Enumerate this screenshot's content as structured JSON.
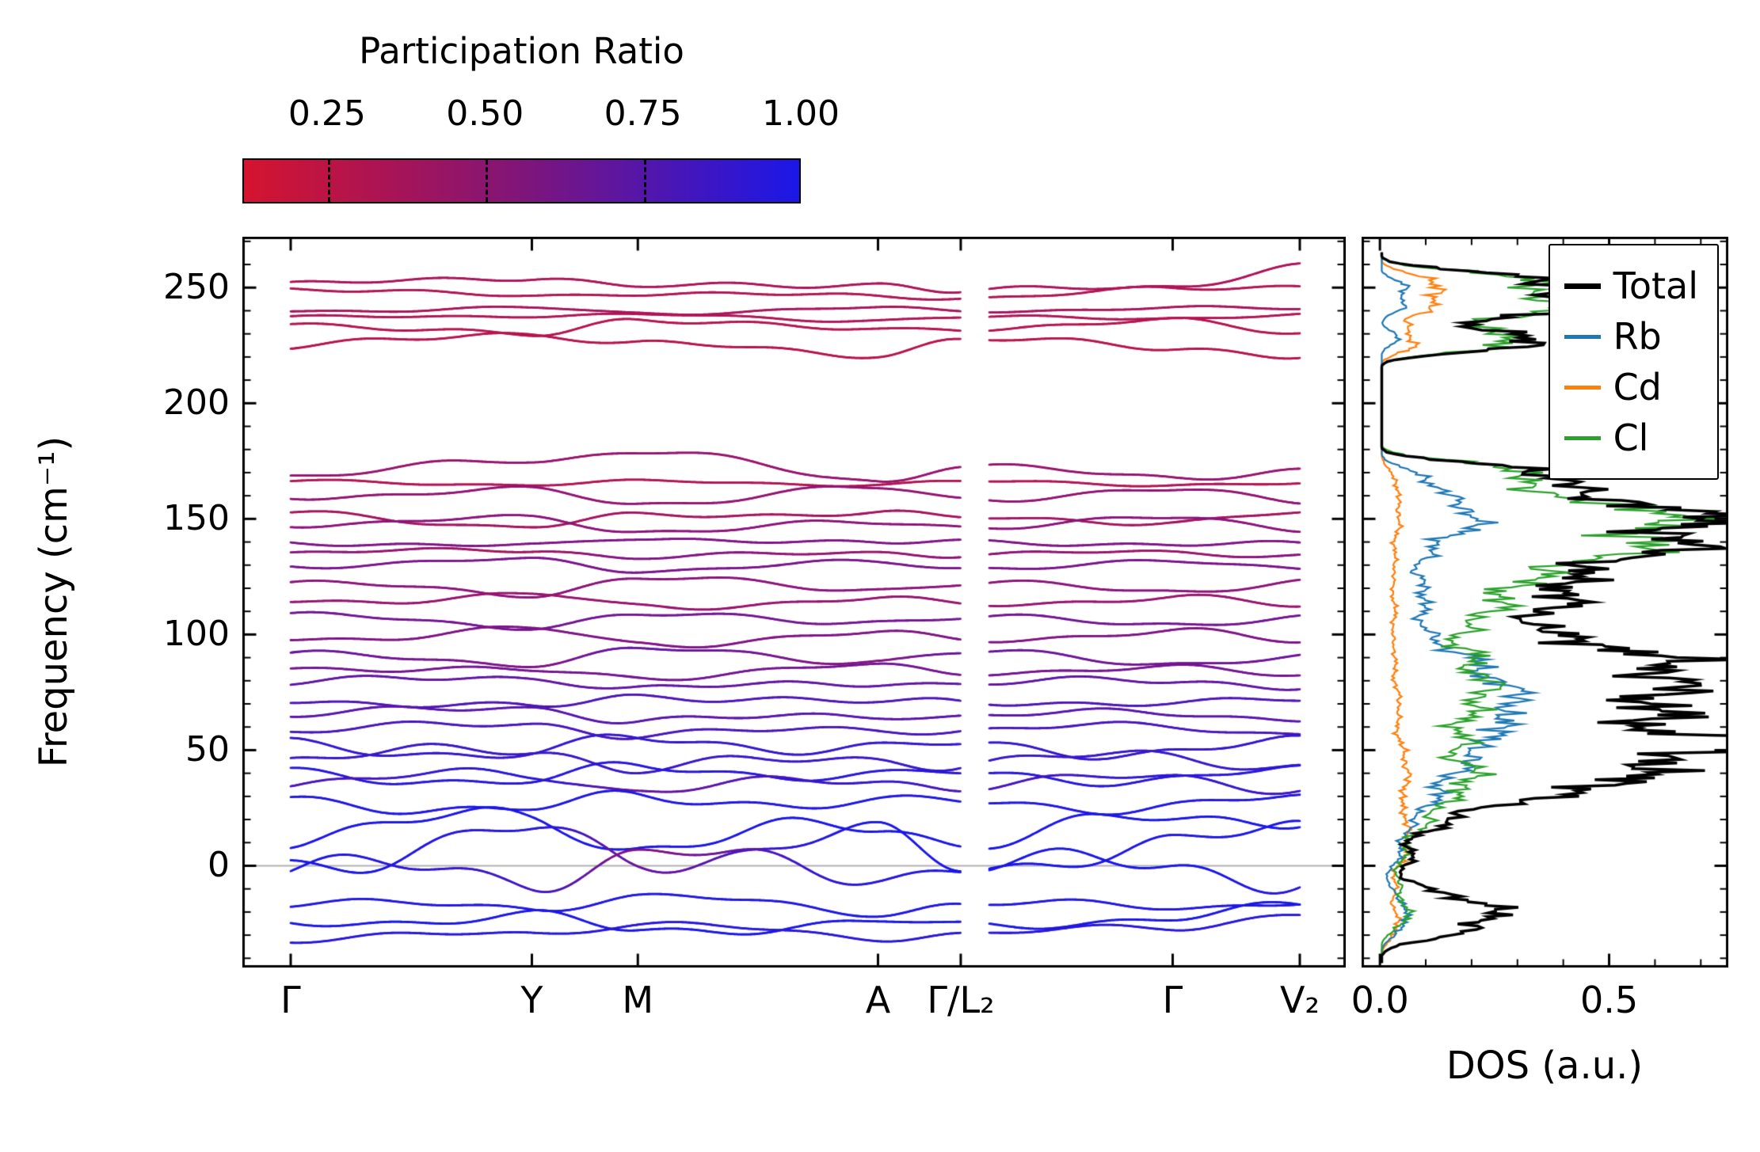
{
  "colorbar": {
    "title": "Participation Ratio",
    "vmin": 0.116,
    "vmax": 1.0,
    "ticks": [
      {
        "label": "0.25",
        "value": 0.25
      },
      {
        "label": "0.50",
        "value": 0.5
      },
      {
        "label": "0.75",
        "value": 0.75
      },
      {
        "label": "1.00",
        "value": 1.0
      }
    ],
    "gradient": [
      "#d5142f",
      "#801579",
      "#1b17e8"
    ]
  },
  "band_axis": {
    "ylabel": "Frequency (cm⁻¹)",
    "ylim": [
      -44,
      272
    ],
    "yticks": [
      0,
      50,
      100,
      150,
      200,
      250
    ],
    "y_minor_step": 10,
    "xticks": [
      {
        "label": "Γ",
        "pos": 0.0
      },
      {
        "label": "Y",
        "pos": 0.239
      },
      {
        "label": "M",
        "pos": 0.344
      },
      {
        "label": "A",
        "pos": 0.582
      },
      {
        "label": "Γ/L₂",
        "pos": 0.664
      },
      {
        "label": "Γ",
        "pos": 0.874
      },
      {
        "label": "V₂",
        "pos": 1.0
      }
    ],
    "zero_line_color": "#b0b0b0"
  },
  "dos_axis": {
    "xlabel": "DOS (a.u.)",
    "xlim": [
      -0.04,
      0.76
    ],
    "xticks": [
      {
        "label": "0.0",
        "value": 0.0
      },
      {
        "label": "0.5",
        "value": 0.5
      }
    ],
    "x_minor": [
      0.1,
      0.2,
      0.3,
      0.4,
      0.6,
      0.7
    ],
    "legend": [
      {
        "label": "Total",
        "color": "#000000"
      },
      {
        "label": "Rb",
        "color": "#1f77b4"
      },
      {
        "label": "Cd",
        "color": "#ff7f0e"
      },
      {
        "label": "Cl",
        "color": "#2ca02c"
      }
    ]
  },
  "chart_data": [
    {
      "type": "line",
      "title": "Phonon band structure colored by participation ratio",
      "ylabel": "Frequency (cm⁻¹)",
      "ylim": [
        -44,
        272
      ],
      "path_points": [
        "Γ",
        "Y",
        "M",
        "A",
        "Γ/L₂",
        "Γ",
        "V₂"
      ],
      "x_nodes": [
        0.0,
        0.239,
        0.344,
        0.582,
        0.664,
        0.874,
        1.0
      ],
      "break_x": [
        0.664,
        0.692
      ],
      "color_low": "#d5142f",
      "color_high": "#1b17e8",
      "bands": [
        {
          "f": [
            251,
            255,
            250,
            252,
            248,
            251,
            259
          ],
          "pr": 0.32,
          "amp": 2.0,
          "ph": 0.1
        },
        {
          "f": [
            250,
            246,
            248,
            246,
            246,
            249,
            251
          ],
          "pr": 0.3,
          "amp": 1.5,
          "ph": 0.6
        },
        {
          "f": [
            240,
            241,
            239,
            241,
            240,
            241,
            241
          ],
          "pr": 0.33,
          "amp": 1.0,
          "ph": 0.3
        },
        {
          "f": [
            237,
            238,
            238,
            236,
            237,
            237,
            238
          ],
          "pr": 0.3,
          "amp": 1.0,
          "ph": 0.8
        },
        {
          "f": [
            235,
            229,
            237,
            231,
            233,
            235,
            231
          ],
          "pr": 0.28,
          "amp": 2.0,
          "ph": 0.2
        },
        {
          "f": [
            224,
            231,
            225,
            222,
            227,
            225,
            220
          ],
          "pr": 0.27,
          "amp": 2.5,
          "ph": 0.5
        },
        {
          "f": [
            169,
            175,
            180,
            166,
            174,
            167,
            172
          ],
          "pr": 0.4,
          "amp": 2.0,
          "ph": 0.15
        },
        {
          "f": [
            166,
            165,
            166,
            165,
            166,
            165,
            165
          ],
          "pr": 0.3,
          "amp": 1.0,
          "ph": 0.4
        },
        {
          "f": [
            160,
            162,
            157,
            163,
            159,
            162,
            158
          ],
          "pr": 0.42,
          "amp": 2.0,
          "ph": 0.7
        },
        {
          "f": [
            152,
            147,
            151,
            153,
            150,
            149,
            152
          ],
          "pr": 0.35,
          "amp": 1.8,
          "ph": 0.25
        },
        {
          "f": [
            148,
            150,
            145,
            148,
            147,
            150,
            146
          ],
          "pr": 0.45,
          "amp": 1.8,
          "ph": 0.55
        },
        {
          "f": [
            140,
            138,
            142,
            139,
            141,
            138,
            140
          ],
          "pr": 0.5,
          "amp": 1.5,
          "ph": 0.35
        },
        {
          "f": [
            135,
            137,
            133,
            136,
            134,
            136,
            134
          ],
          "pr": [
            0.45,
            0.35,
            0.5,
            0.4,
            0.45,
            0.38,
            0.48
          ],
          "amp": 1.5,
          "ph": 0.65
        },
        {
          "f": [
            130,
            132,
            128,
            131,
            129,
            131,
            129
          ],
          "pr": 0.52,
          "amp": 1.5,
          "ph": 0.2
        },
        {
          "f": [
            122,
            118,
            124,
            120,
            122,
            119,
            123
          ],
          "pr": 0.45,
          "amp": 2.0,
          "ph": 0.45
        },
        {
          "f": [
            114,
            117,
            112,
            115,
            113,
            116,
            112
          ],
          "pr": 0.4,
          "amp": 2.0,
          "ph": 0.75
        },
        {
          "f": [
            108,
            104,
            108,
            106,
            107,
            105,
            107
          ],
          "pr": 0.55,
          "amp": 2.0,
          "ph": 0.3
        },
        {
          "f": [
            98,
            102,
            96,
            100,
            98,
            101,
            97
          ],
          "pr": 0.5,
          "amp": 2.2,
          "ph": 0.6
        },
        {
          "f": [
            91,
            88,
            93,
            89,
            92,
            88,
            90
          ],
          "pr": [
            0.6,
            0.5,
            0.62,
            0.48,
            0.6,
            0.55,
            0.58
          ],
          "amp": 2.2,
          "ph": 0.1
        },
        {
          "f": [
            86,
            84,
            82,
            86,
            84,
            85,
            83
          ],
          "pr": 0.55,
          "amp": 2.0,
          "ph": 0.5
        },
        {
          "f": [
            79,
            82,
            76,
            80,
            78,
            81,
            77
          ],
          "pr": 0.62,
          "amp": 2.5,
          "ph": 0.8
        },
        {
          "f": [
            72,
            68,
            74,
            70,
            72,
            69,
            73
          ],
          "pr": 0.7,
          "amp": 2.5,
          "ph": 0.25
        },
        {
          "f": [
            65,
            69,
            62,
            66,
            64,
            67,
            63
          ],
          "pr": 0.66,
          "amp": 2.5,
          "ph": 0.55
        },
        {
          "f": [
            58,
            62,
            56,
            60,
            58,
            61,
            57
          ],
          "pr": 0.72,
          "amp": 2.5,
          "ph": 0.4
        },
        {
          "f": [
            52,
            48,
            55,
            50,
            52,
            49,
            53
          ],
          "pr": 0.8,
          "amp": 4.0,
          "ph": 0.7
        },
        {
          "f": [
            46,
            51,
            42,
            47,
            44,
            48,
            43
          ],
          "pr": 0.78,
          "amp": 4.0,
          "ph": 0.15
        },
        {
          "f": [
            40,
            36,
            43,
            38,
            40,
            37,
            41
          ],
          "pr": 0.85,
          "amp": 3.5,
          "ph": 0.5
        },
        {
          "f": [
            36,
            40,
            33,
            37,
            35,
            38,
            34
          ],
          "pr": [
            0.7,
            0.85,
            0.6,
            0.8,
            0.7,
            0.82,
            0.75
          ],
          "amp": 3.5,
          "ph": 0.85
        },
        {
          "f": [
            28,
            24,
            30,
            26,
            28,
            25,
            29
          ],
          "pr": 0.88,
          "amp": 4.0,
          "ph": 0.3
        },
        {
          "f": [
            13,
            22,
            8,
            18,
            11,
            20,
            22
          ],
          "pr": 0.9,
          "amp": 6.0,
          "ph": 0.6
        },
        {
          "f": [
            1,
            14,
            3,
            12,
            1,
            7,
            18
          ],
          "pr": [
            0.92,
            0.85,
            0.6,
            0.9,
            0.92,
            0.88,
            0.9
          ],
          "amp": 7.0,
          "ph": 0.2
        },
        {
          "f": [
            0,
            -5,
            5,
            -3,
            0,
            1,
            -7
          ],
          "pr": [
            0.9,
            0.75,
            0.5,
            0.85,
            0.9,
            0.92,
            0.85
          ],
          "amp": 7.0,
          "ph": 0.5
        },
        {
          "f": [
            -16,
            -18,
            -13,
            -20,
            -16,
            -18,
            -15
          ],
          "pr": 0.88,
          "amp": 2.5,
          "ph": 0.35
        },
        {
          "f": [
            -26,
            -21,
            -29,
            -24,
            -27,
            -22,
            -18
          ],
          "pr": 0.9,
          "amp": 3.0,
          "ph": 0.65
        },
        {
          "f": [
            -32,
            -29,
            -25,
            -31,
            -29,
            -27,
            -20
          ],
          "pr": 0.85,
          "amp": 2.0,
          "ph": 0.1
        }
      ]
    },
    {
      "type": "line",
      "title": "Atom-projected phonon density of states",
      "xlabel": "DOS (a.u.)",
      "xlim": [
        -0.04,
        0.76
      ],
      "ylim": [
        -44,
        272
      ],
      "legend_position": "upper right",
      "series": [
        {
          "name": "Cd",
          "color": "#ff7f0e",
          "linewidth": 2.2,
          "peaks": [
            [
              -25,
              6,
              0.04
            ],
            [
              -10,
              5,
              0.03
            ],
            [
              5,
              6,
              0.05
            ],
            [
              18,
              6,
              0.05
            ],
            [
              35,
              8,
              0.05
            ],
            [
              50,
              8,
              0.04
            ],
            [
              70,
              8,
              0.04
            ],
            [
              90,
              8,
              0.03
            ],
            [
              110,
              8,
              0.03
            ],
            [
              130,
              8,
              0.03
            ],
            [
              150,
              8,
              0.04
            ],
            [
              165,
              6,
              0.03
            ],
            [
              225,
              3,
              0.08
            ],
            [
              233,
              3,
              0.06
            ],
            [
              241,
              3,
              0.1
            ],
            [
              248,
              3,
              0.12
            ],
            [
              254,
              3,
              0.08
            ]
          ]
        },
        {
          "name": "Rb",
          "color": "#1f77b4",
          "linewidth": 2.2,
          "peaks": [
            [
              -25,
              5,
              0.05
            ],
            [
              -15,
              5,
              0.04
            ],
            [
              5,
              6,
              0.04
            ],
            [
              20,
              6,
              0.07
            ],
            [
              32,
              5,
              0.12
            ],
            [
              45,
              5,
              0.2
            ],
            [
              58,
              5,
              0.26
            ],
            [
              70,
              5,
              0.26
            ],
            [
              80,
              5,
              0.22
            ],
            [
              90,
              4,
              0.16
            ],
            [
              100,
              5,
              0.1
            ],
            [
              112,
              5,
              0.08
            ],
            [
              122,
              5,
              0.08
            ],
            [
              135,
              5,
              0.1
            ],
            [
              145,
              4,
              0.14
            ],
            [
              152,
              4,
              0.16
            ],
            [
              160,
              4,
              0.12
            ],
            [
              168,
              4,
              0.08
            ],
            [
              228,
              3,
              0.04
            ],
            [
              242,
              3,
              0.05
            ],
            [
              250,
              3,
              0.06
            ]
          ]
        },
        {
          "name": "Cl",
          "color": "#2ca02c",
          "linewidth": 2.2,
          "peaks": [
            [
              -22,
              5,
              0.06
            ],
            [
              -10,
              5,
              0.04
            ],
            [
              5,
              6,
              0.05
            ],
            [
              20,
              6,
              0.1
            ],
            [
              32,
              5,
              0.14
            ],
            [
              42,
              5,
              0.18
            ],
            [
              55,
              5,
              0.18
            ],
            [
              68,
              5,
              0.2
            ],
            [
              80,
              5,
              0.24
            ],
            [
              92,
              4,
              0.2
            ],
            [
              103,
              4,
              0.18
            ],
            [
              112,
              4,
              0.22
            ],
            [
              120,
              4,
              0.2
            ],
            [
              127,
              4,
              0.26
            ],
            [
              135,
              4,
              0.44
            ],
            [
              141,
              3,
              0.36
            ],
            [
              148,
              4,
              0.52
            ],
            [
              154,
              3,
              0.38
            ],
            [
              160,
              4,
              0.28
            ],
            [
              167,
              3,
              0.26
            ],
            [
              173,
              3,
              0.2
            ],
            [
              225,
              3,
              0.26
            ],
            [
              231,
              3,
              0.2
            ],
            [
              239,
              3,
              0.3
            ],
            [
              244,
              3,
              0.24
            ],
            [
              250,
              3,
              0.28
            ],
            [
              255,
              3,
              0.2
            ]
          ]
        },
        {
          "name": "Total",
          "color": "#000000",
          "linewidth": 3.5,
          "peaks": [
            [
              -28,
              4,
              0.16
            ],
            [
              -20,
              4,
              0.22
            ],
            [
              -12,
              4,
              0.12
            ],
            [
              3,
              5,
              0.07
            ],
            [
              18,
              5,
              0.12
            ],
            [
              30,
              5,
              0.3
            ],
            [
              38,
              4,
              0.42
            ],
            [
              48,
              5,
              0.58
            ],
            [
              55,
              4,
              0.5
            ],
            [
              65,
              5,
              0.52
            ],
            [
              75,
              5,
              0.44
            ],
            [
              83,
              5,
              0.42
            ],
            [
              90,
              4,
              0.38
            ],
            [
              97,
              4,
              0.33
            ],
            [
              105,
              4,
              0.25
            ],
            [
              113,
              4,
              0.3
            ],
            [
              120,
              4,
              0.28
            ],
            [
              127,
              4,
              0.3
            ],
            [
              135,
              4,
              0.5
            ],
            [
              141,
              3,
              0.4
            ],
            [
              148,
              4,
              0.58
            ],
            [
              154,
              3,
              0.42
            ],
            [
              160,
              4,
              0.32
            ],
            [
              166,
              3,
              0.3
            ],
            [
              172,
              3,
              0.25
            ],
            [
              225,
              3,
              0.28
            ],
            [
              230,
              3,
              0.22
            ],
            [
              239,
              3,
              0.32
            ],
            [
              244,
              3,
              0.28
            ],
            [
              250,
              3,
              0.3
            ],
            [
              255,
              3,
              0.22
            ]
          ]
        }
      ]
    }
  ]
}
